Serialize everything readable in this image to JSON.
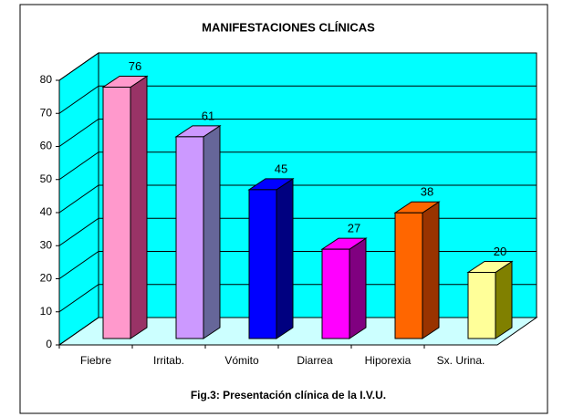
{
  "chart_data": {
    "type": "bar3d",
    "title": "MANIFESTACIONES CLÍNICAS",
    "caption": "Fig.3: Presentación clínica de la I.V.U.",
    "categories": [
      "Fiebre",
      "Irritab.",
      "Vómito",
      "Diarrea",
      "Hiporexia",
      "Sx. Urina."
    ],
    "values": [
      76,
      61,
      45,
      27,
      38,
      20
    ],
    "colors": [
      "#ff99cc",
      "#cc99ff",
      "#0000ff",
      "#ff00ff",
      "#ff6600",
      "#ffff99"
    ],
    "side_colors": [
      "#993366",
      "#666699",
      "#000080",
      "#800080",
      "#993300",
      "#808000"
    ],
    "wall_color": "#00ffff",
    "floor_color": "#ccffff",
    "ylim": [
      0,
      80
    ],
    "yticks": [
      0,
      10,
      20,
      30,
      40,
      50,
      60,
      70,
      80
    ],
    "grid": true
  }
}
